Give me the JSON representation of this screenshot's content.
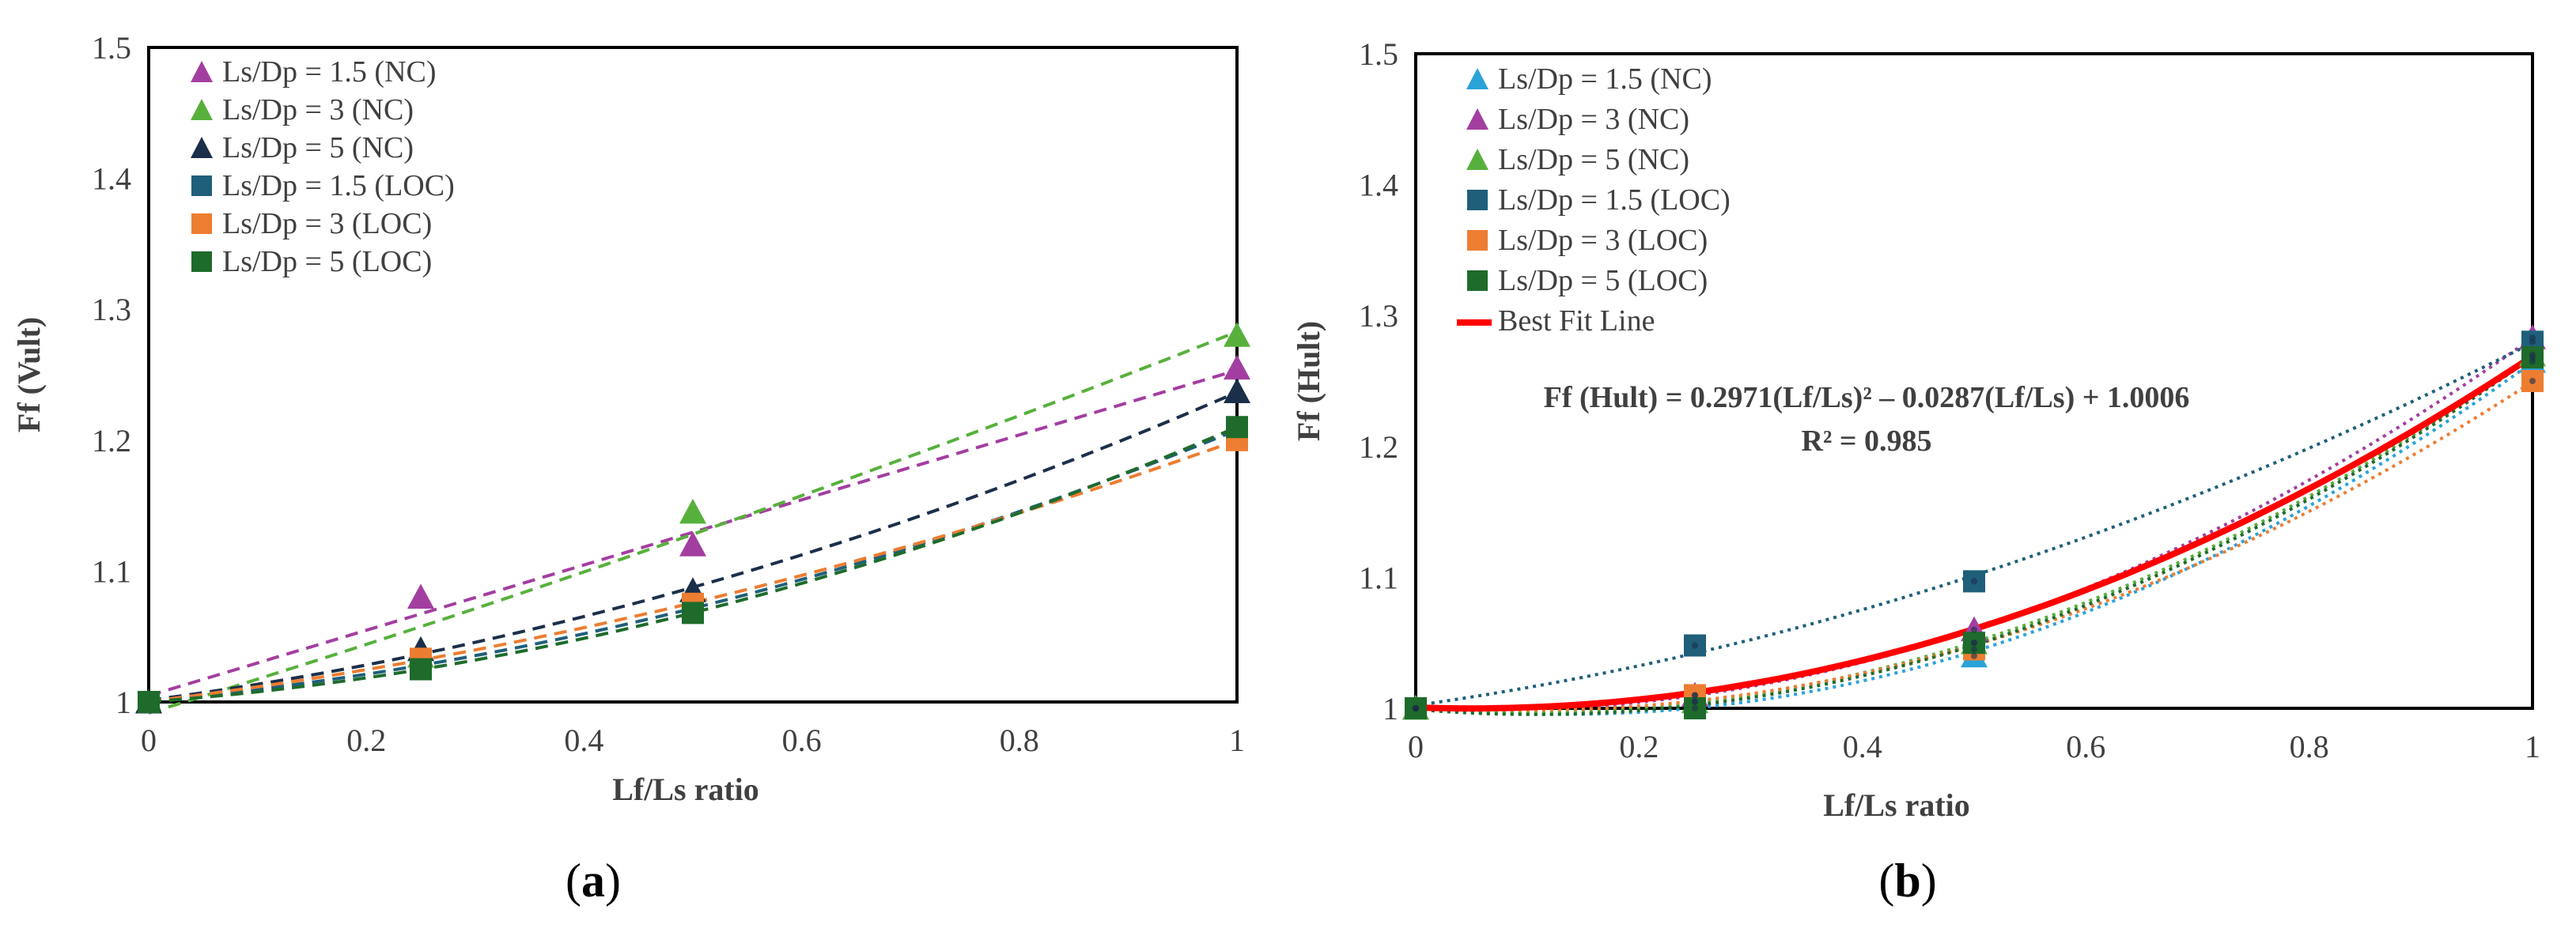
{
  "colors": {
    "ls15_nc": "#a33ea1",
    "ls3_nc": "#58b03c",
    "ls5_nc": "#1b2f4a",
    "ls15_loc": "#1f5f7a",
    "ls3_loc": "#ed7d31",
    "ls5_loc": "#1e6b2b",
    "b_ls15_nc": "#2aa3d8",
    "b_ls3_nc": "#a33ea1",
    "b_ls5_nc": "#58b03c",
    "best_fit": "#ff0000"
  },
  "chart_data": [
    {
      "type": "scatter",
      "panel": "a",
      "caption": "(a)",
      "caption_letter": "a",
      "xlabel": "Lf/Ls ratio",
      "ylabel": "Ff (Vult)",
      "xlim": [
        0,
        1
      ],
      "ylim": [
        1,
        1.5
      ],
      "x_ticks": [
        0,
        0.2,
        0.4,
        0.6,
        0.8,
        1
      ],
      "x_tick_labels": [
        "0",
        "0.2",
        "0.4",
        "0.6",
        "0.8",
        "1"
      ],
      "y_ticks": [
        1,
        1.1,
        1.2,
        1.3,
        1.4,
        1.5
      ],
      "y_tick_labels": [
        "1",
        "1.1",
        "1.2",
        "1.3",
        "1.4",
        "1.5"
      ],
      "legend_position": "top-left",
      "x": [
        0,
        0.25,
        0.5,
        1
      ],
      "series": [
        {
          "name": "Ls/Dp = 1.5 (NC)",
          "marker": "triangle",
          "color_key": "ls15_nc",
          "values": [
            1.0,
            1.08,
            1.12,
            1.255
          ]
        },
        {
          "name": "Ls/Dp = 3 (NC)",
          "marker": "triangle",
          "color_key": "ls3_nc",
          "values": [
            1.0,
            1.035,
            1.145,
            1.28
          ]
        },
        {
          "name": "Ls/Dp = 5 (NC)",
          "marker": "triangle",
          "color_key": "ls5_nc",
          "values": [
            1.0,
            1.04,
            1.085,
            1.237
          ]
        },
        {
          "name": "Ls/Dp = 1.5 (LOC)",
          "marker": "square",
          "color_key": "ls15_loc",
          "values": [
            1.0,
            1.03,
            1.07,
            1.208
          ]
        },
        {
          "name": "Ls/Dp = 3 (LOC)",
          "marker": "square",
          "color_key": "ls3_loc",
          "values": [
            1.0,
            1.033,
            1.075,
            1.2
          ]
        },
        {
          "name": "Ls/Dp = 5 (LOC)",
          "marker": "square",
          "color_key": "ls5_loc",
          "values": [
            1.0,
            1.025,
            1.068,
            1.21
          ]
        }
      ]
    },
    {
      "type": "scatter",
      "panel": "b",
      "caption": "(b)",
      "caption_letter": "b",
      "xlabel": "Lf/Ls ratio",
      "ylabel": "Ff (Hult)",
      "xlim": [
        0,
        1
      ],
      "ylim": [
        1,
        1.5
      ],
      "x_ticks": [
        0,
        0.2,
        0.4,
        0.6,
        0.8,
        1
      ],
      "x_tick_labels": [
        "0",
        "0.2",
        "0.4",
        "0.6",
        "0.8",
        "1"
      ],
      "y_ticks": [
        1,
        1.1,
        1.2,
        1.3,
        1.4,
        1.5
      ],
      "y_tick_labels": [
        "1",
        "1.1",
        "1.2",
        "1.3",
        "1.4",
        "1.5"
      ],
      "legend_position": "top-left",
      "x": [
        0,
        0.25,
        0.5,
        1
      ],
      "series": [
        {
          "name": "Ls/Dp = 1.5 (NC)",
          "marker": "triangle",
          "color_key": "b_ls15_nc",
          "values": [
            1.0,
            1.005,
            1.04,
            1.265
          ]
        },
        {
          "name": "Ls/Dp = 3 (NC)",
          "marker": "triangle",
          "color_key": "b_ls3_nc",
          "values": [
            1.0,
            1.01,
            1.06,
            1.283
          ]
        },
        {
          "name": "Ls/Dp = 5 (NC)",
          "marker": "triangle",
          "color_key": "b_ls5_nc",
          "values": [
            1.0,
            1.005,
            1.05,
            1.27
          ]
        },
        {
          "name": "Ls/Dp = 1.5 (LOC)",
          "marker": "square",
          "color_key": "ls15_loc",
          "values": [
            1.0,
            1.048,
            1.097,
            1.28
          ]
        },
        {
          "name": "Ls/Dp = 3 (LOC)",
          "marker": "square",
          "color_key": "ls3_loc",
          "values": [
            1.0,
            1.01,
            1.045,
            1.25
          ]
        },
        {
          "name": "Ls/Dp = 5 (LOC)",
          "marker": "square",
          "color_key": "ls5_loc",
          "values": [
            1.0,
            1.0,
            1.05,
            1.268
          ]
        }
      ],
      "best_fit": {
        "name": "Best Fit Line",
        "color_key": "best_fit",
        "coefficients": [
          0.2971,
          -0.0287,
          1.0006
        ]
      },
      "equation": "Ff (Hult) = 0.2971(Lf/Ls)² – 0.0287(Lf/Ls) + 1.0006",
      "r_squared": "R² = 0.985"
    }
  ]
}
